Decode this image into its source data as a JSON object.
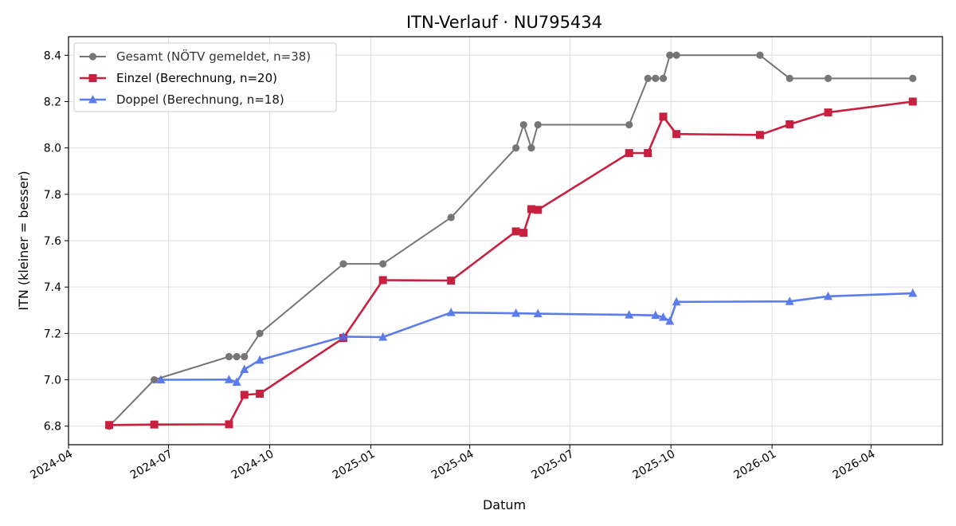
{
  "chart_data": {
    "type": "line",
    "title": "ITN-Verlauf · NU795434",
    "xlabel": "Datum",
    "ylabel": "ITN  (kleiner = besser)",
    "xlim": [
      "2024-04-01",
      "2026-06-05"
    ],
    "ylim": [
      6.72,
      8.48
    ],
    "grid": true,
    "legend_position": "top-left",
    "x_ticks": [
      "2024-04",
      "2024-07",
      "2024-10",
      "2025-01",
      "2025-04",
      "2025-07",
      "2025-10",
      "2026-01",
      "2026-04"
    ],
    "y_ticks": [
      "6.8",
      "7.0",
      "7.2",
      "7.4",
      "7.6",
      "7.8",
      "8.0",
      "8.2",
      "8.4"
    ],
    "series": [
      {
        "name": "Gesamt (NÖTV gemeldet, n=38)",
        "color": "#555555",
        "marker": "circle",
        "points": [
          [
            "2024-05-08",
            6.8
          ],
          [
            "2024-06-18",
            7.0
          ],
          [
            "2024-08-25",
            7.1
          ],
          [
            "2024-09-01",
            7.1
          ],
          [
            "2024-09-08",
            7.1
          ],
          [
            "2024-09-22",
            7.2
          ],
          [
            "2024-12-07",
            7.5
          ],
          [
            "2025-01-12",
            7.5
          ],
          [
            "2025-03-15",
            7.7
          ],
          [
            "2025-05-13",
            8.0
          ],
          [
            "2025-05-20",
            8.1
          ],
          [
            "2025-05-27",
            8.0
          ],
          [
            "2025-06-02",
            8.1
          ],
          [
            "2025-08-24",
            8.1
          ],
          [
            "2025-09-10",
            8.3
          ],
          [
            "2025-09-17",
            8.3
          ],
          [
            "2025-09-24",
            8.3
          ],
          [
            "2025-09-30",
            8.4
          ],
          [
            "2025-10-06",
            8.4
          ],
          [
            "2025-12-21",
            8.4
          ],
          [
            "2026-01-17",
            8.3
          ],
          [
            "2026-02-21",
            8.3
          ],
          [
            "2026-05-09",
            8.3
          ]
        ]
      },
      {
        "name": "Einzel (Berechnung, n=20)",
        "color": "#c8203f",
        "marker": "square",
        "points": [
          [
            "2024-05-08",
            6.805
          ],
          [
            "2024-06-18",
            6.807
          ],
          [
            "2024-08-25",
            6.808
          ],
          [
            "2024-09-08",
            6.935
          ],
          [
            "2024-09-22",
            6.94
          ],
          [
            "2024-12-07",
            7.18
          ],
          [
            "2025-01-12",
            7.43
          ],
          [
            "2025-03-15",
            7.428
          ],
          [
            "2025-05-13",
            7.64
          ],
          [
            "2025-05-20",
            7.634
          ],
          [
            "2025-05-27",
            7.736
          ],
          [
            "2025-06-02",
            7.733
          ],
          [
            "2025-08-24",
            7.978
          ],
          [
            "2025-09-10",
            7.978
          ],
          [
            "2025-09-24",
            8.135
          ],
          [
            "2025-10-06",
            8.06
          ],
          [
            "2025-12-21",
            8.056
          ],
          [
            "2026-01-17",
            8.102
          ],
          [
            "2026-02-21",
            8.153
          ],
          [
            "2026-05-09",
            8.2
          ]
        ]
      },
      {
        "name": "Doppel (Berechnung, n=18)",
        "color": "#4a6ee8",
        "marker": "triangle",
        "points": [
          [
            "2024-06-24",
            7.0
          ],
          [
            "2024-08-25",
            7.001
          ],
          [
            "2024-09-01",
            6.99
          ],
          [
            "2024-09-08",
            7.045
          ],
          [
            "2024-09-22",
            7.085
          ],
          [
            "2024-12-07",
            7.186
          ],
          [
            "2025-01-12",
            7.184
          ],
          [
            "2025-03-15",
            7.29
          ],
          [
            "2025-05-13",
            7.287
          ],
          [
            "2025-06-02",
            7.285
          ],
          [
            "2025-08-24",
            7.28
          ],
          [
            "2025-09-17",
            7.278
          ],
          [
            "2025-09-24",
            7.27
          ],
          [
            "2025-09-30",
            7.253
          ],
          [
            "2025-10-06",
            7.336
          ],
          [
            "2026-01-17",
            7.338
          ],
          [
            "2026-02-21",
            7.36
          ],
          [
            "2026-05-09",
            7.373
          ]
        ]
      }
    ]
  }
}
